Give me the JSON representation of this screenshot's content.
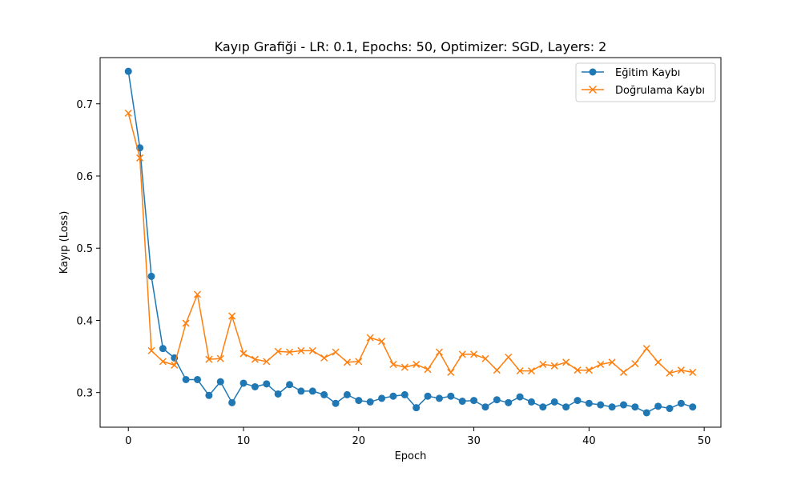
{
  "chart_data": {
    "type": "line",
    "title": "Kayıp Grafiği - LR: 0.1, Epochs: 50, Optimizer: SGD, Layers: 2",
    "xlabel": "Epoch",
    "ylabel": "Kayıp (Loss)",
    "xlim": [
      -2.45,
      51.45
    ],
    "ylim": [
      0.252,
      0.764
    ],
    "xticks": [
      0,
      10,
      20,
      30,
      40,
      50
    ],
    "yticks": [
      0.3,
      0.4,
      0.5,
      0.6,
      0.7
    ],
    "ytick_labels": [
      "0.3",
      "0.4",
      "0.5",
      "0.6",
      "0.7"
    ],
    "grid": false,
    "legend_position": "top-right",
    "x": [
      0,
      1,
      2,
      3,
      4,
      5,
      6,
      7,
      8,
      9,
      10,
      11,
      12,
      13,
      14,
      15,
      16,
      17,
      18,
      19,
      20,
      21,
      22,
      23,
      24,
      25,
      26,
      27,
      28,
      29,
      30,
      31,
      32,
      33,
      34,
      35,
      36,
      37,
      38,
      39,
      40,
      41,
      42,
      43,
      44,
      45,
      46,
      47,
      48,
      49
    ],
    "series": [
      {
        "name": "Eğitim Kaybı",
        "color": "#1f77b4",
        "marker": "circle",
        "values": [
          0.745,
          0.639,
          0.461,
          0.361,
          0.348,
          0.318,
          0.318,
          0.296,
          0.315,
          0.286,
          0.313,
          0.308,
          0.312,
          0.298,
          0.311,
          0.302,
          0.302,
          0.297,
          0.285,
          0.297,
          0.289,
          0.287,
          0.292,
          0.295,
          0.297,
          0.279,
          0.295,
          0.292,
          0.295,
          0.288,
          0.289,
          0.28,
          0.29,
          0.286,
          0.294,
          0.287,
          0.28,
          0.287,
          0.28,
          0.289,
          0.285,
          0.283,
          0.28,
          0.283,
          0.28,
          0.272,
          0.281,
          0.278,
          0.285,
          0.28
        ]
      },
      {
        "name": "Doğrulama Kaybı",
        "color": "#ff7f0e",
        "marker": "x",
        "values": [
          0.687,
          0.625,
          0.358,
          0.343,
          0.338,
          0.396,
          0.436,
          0.346,
          0.347,
          0.406,
          0.354,
          0.346,
          0.343,
          0.357,
          0.356,
          0.358,
          0.358,
          0.348,
          0.356,
          0.342,
          0.343,
          0.376,
          0.371,
          0.339,
          0.335,
          0.339,
          0.332,
          0.356,
          0.328,
          0.353,
          0.353,
          0.347,
          0.331,
          0.349,
          0.33,
          0.33,
          0.339,
          0.337,
          0.342,
          0.331,
          0.331,
          0.339,
          0.342,
          0.328,
          0.34,
          0.361,
          0.342,
          0.327,
          0.331,
          0.328
        ]
      }
    ]
  }
}
